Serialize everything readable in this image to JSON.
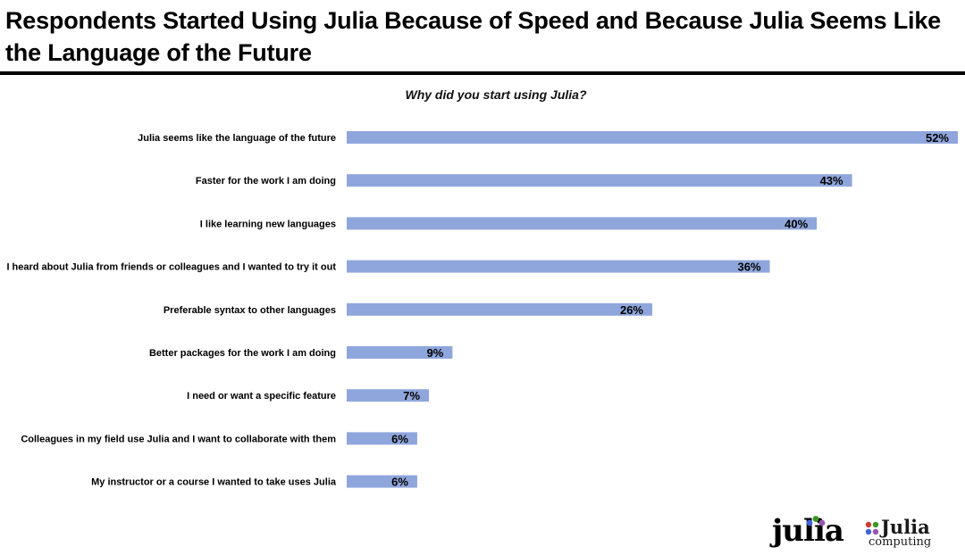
{
  "slide": {
    "title": "Respondents Started Using Julia Because of Speed and Because Julia Seems Like the Language of the Future"
  },
  "logos": {
    "julia": "julia",
    "julia_computing_word": "Julia",
    "julia_computing_sub": "computing"
  },
  "colors": {
    "bar": "#8fa6dc",
    "text": "#000000"
  },
  "chart_data": {
    "type": "bar",
    "orientation": "horizontal",
    "title": "Why did you start using Julia?",
    "categories": [
      "Julia seems like the language of the future",
      "Faster for the work I am doing",
      "I like learning new languages",
      "I heard about Julia from friends or colleagues and I wanted to try it out",
      "Preferable syntax to other languages",
      "Better packages for the work I am doing",
      "I need or want a specific feature",
      "Colleagues in my field use Julia and I want to collaborate with them",
      "My instructor or a course I wanted to take uses Julia"
    ],
    "values": [
      52,
      43,
      40,
      36,
      26,
      9,
      7,
      6,
      6
    ],
    "value_labels": [
      "52%",
      "43%",
      "40%",
      "36%",
      "26%",
      "9%",
      "7%",
      "6%",
      "6%"
    ],
    "unit": "%",
    "xlim": [
      0,
      52
    ],
    "grid": false,
    "legend": "none"
  }
}
